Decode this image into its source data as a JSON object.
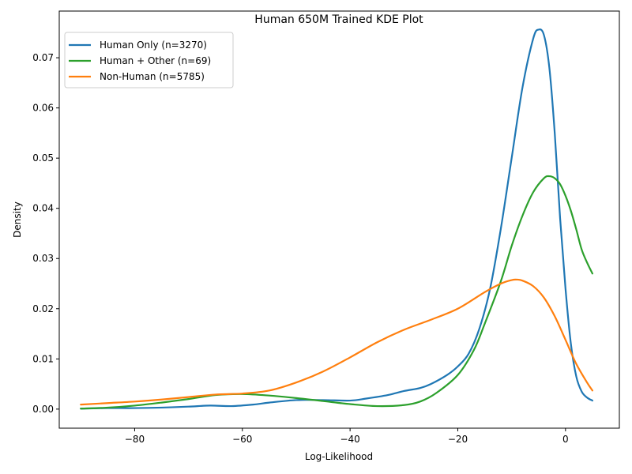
{
  "chart_data": {
    "type": "line",
    "title": "Human 650M Trained KDE Plot",
    "xlabel": "Log-Likelihood",
    "ylabel": "Density",
    "xlim": [
      -94,
      10
    ],
    "ylim": [
      -0.0038,
      0.0793
    ],
    "x_ticks": [
      -80,
      -60,
      -40,
      -20,
      0
    ],
    "x_tick_labels": [
      "−80",
      "−60",
      "−40",
      "−20",
      "0"
    ],
    "y_ticks": [
      0.0,
      0.01,
      0.02,
      0.03,
      0.04,
      0.05,
      0.06,
      0.07
    ],
    "y_tick_labels": [
      "0.00",
      "0.01",
      "0.02",
      "0.03",
      "0.04",
      "0.05",
      "0.06",
      "0.07"
    ],
    "grid": false,
    "legend_position": "upper-left",
    "series": [
      {
        "name": "Human Only (n=3270)",
        "color": "#1f77b4",
        "points": [
          [
            -90,
            0.0001
          ],
          [
            -85,
            0.0002
          ],
          [
            -80,
            0.0002
          ],
          [
            -75,
            0.0003
          ],
          [
            -70,
            0.0005
          ],
          [
            -66,
            0.0007
          ],
          [
            -62,
            0.0006
          ],
          [
            -58,
            0.0009
          ],
          [
            -55,
            0.0013
          ],
          [
            -50,
            0.0018
          ],
          [
            -45,
            0.0018
          ],
          [
            -40,
            0.0017
          ],
          [
            -37,
            0.0021
          ],
          [
            -33,
            0.0028
          ],
          [
            -30,
            0.0036
          ],
          [
            -27,
            0.0042
          ],
          [
            -25,
            0.005
          ],
          [
            -22,
            0.0068
          ],
          [
            -20,
            0.0085
          ],
          [
            -18,
            0.011
          ],
          [
            -16,
            0.016
          ],
          [
            -14,
            0.024
          ],
          [
            -12,
            0.036
          ],
          [
            -10,
            0.05
          ],
          [
            -8,
            0.064
          ],
          [
            -6,
            0.0738
          ],
          [
            -5,
            0.0756
          ],
          [
            -4,
            0.0745
          ],
          [
            -3,
            0.068
          ],
          [
            -2,
            0.055
          ],
          [
            -1,
            0.038
          ],
          [
            0,
            0.024
          ],
          [
            1,
            0.013
          ],
          [
            2,
            0.0065
          ],
          [
            3,
            0.0035
          ],
          [
            4,
            0.0023
          ],
          [
            5,
            0.0017
          ]
        ]
      },
      {
        "name": "Human + Other (n=69)",
        "color": "#2ca02c",
        "points": [
          [
            -90,
            0.0001
          ],
          [
            -85,
            0.0003
          ],
          [
            -80,
            0.0007
          ],
          [
            -75,
            0.0013
          ],
          [
            -70,
            0.002
          ],
          [
            -65,
            0.0028
          ],
          [
            -60,
            0.003
          ],
          [
            -55,
            0.0027
          ],
          [
            -50,
            0.0022
          ],
          [
            -45,
            0.0016
          ],
          [
            -40,
            0.001
          ],
          [
            -35,
            0.0006
          ],
          [
            -30,
            0.0008
          ],
          [
            -27,
            0.0015
          ],
          [
            -24,
            0.0032
          ],
          [
            -20,
            0.0068
          ],
          [
            -17,
            0.0118
          ],
          [
            -15,
            0.017
          ],
          [
            -12,
            0.0255
          ],
          [
            -10,
            0.0325
          ],
          [
            -8,
            0.0385
          ],
          [
            -6,
            0.0432
          ],
          [
            -4,
            0.046
          ],
          [
            -3,
            0.0464
          ],
          [
            -2,
            0.046
          ],
          [
            -1,
            0.0448
          ],
          [
            0,
            0.0425
          ],
          [
            1,
            0.0395
          ],
          [
            2,
            0.0358
          ],
          [
            3,
            0.0318
          ],
          [
            4,
            0.0292
          ],
          [
            5,
            0.027
          ]
        ]
      },
      {
        "name": "Non-Human (n=5785)",
        "color": "#ff7f0e",
        "points": [
          [
            -90,
            0.0009
          ],
          [
            -85,
            0.0012
          ],
          [
            -80,
            0.0015
          ],
          [
            -75,
            0.0019
          ],
          [
            -70,
            0.0024
          ],
          [
            -65,
            0.0029
          ],
          [
            -60,
            0.0031
          ],
          [
            -55,
            0.0037
          ],
          [
            -50,
            0.0053
          ],
          [
            -45,
            0.0075
          ],
          [
            -40,
            0.0103
          ],
          [
            -35,
            0.0133
          ],
          [
            -30,
            0.0158
          ],
          [
            -25,
            0.0178
          ],
          [
            -20,
            0.02
          ],
          [
            -15,
            0.0233
          ],
          [
            -12,
            0.025
          ],
          [
            -10,
            0.0257
          ],
          [
            -9,
            0.0258
          ],
          [
            -8,
            0.0256
          ],
          [
            -6,
            0.0245
          ],
          [
            -4,
            0.0222
          ],
          [
            -2,
            0.0185
          ],
          [
            0,
            0.0138
          ],
          [
            2,
            0.009
          ],
          [
            4,
            0.0053
          ],
          [
            5,
            0.0037
          ]
        ]
      }
    ]
  }
}
